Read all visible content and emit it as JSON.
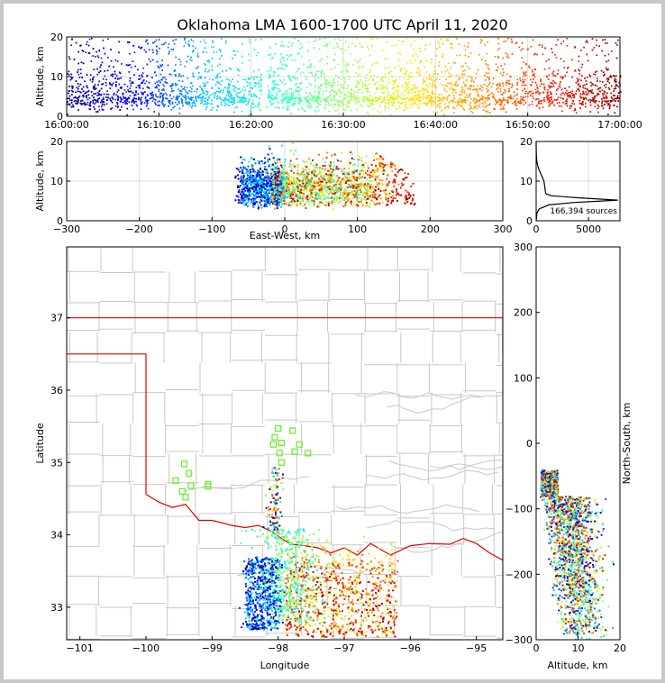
{
  "title": "Oklahoma LMA 1600-1700 UTC April 11, 2020",
  "colors": {
    "county_lines": "#c8c8c8",
    "state_lines": "#e00000",
    "stations": "#66ee22",
    "histogram_line": "#000000",
    "colormap": [
      "#00008b",
      "#0000ff",
      "#00c8ff",
      "#22ffd2",
      "#9aff63",
      "#ffe600",
      "#ff8c00",
      "#ff1a00",
      "#8b0000"
    ]
  },
  "chart_data": [
    {
      "type": "scatter",
      "name": "time_height",
      "xlabel": "",
      "ylabel": "Altitude, km",
      "x_ticks": [
        "16:00:00",
        "16:10:00",
        "16:20:00",
        "16:30:00",
        "16:40:00",
        "16:50:00",
        "17:00:00"
      ],
      "y_ticks": [
        0,
        10,
        20
      ],
      "xlim_minutes": [
        0,
        60
      ],
      "ylim": [
        0,
        20
      ],
      "data_gap_minutes": [
        21.1,
        21.6
      ],
      "color_by": "time",
      "grid": true
    },
    {
      "type": "scatter",
      "name": "east_west_height",
      "xlabel": "East-West, km",
      "ylabel": "Altitude, km",
      "x_ticks": [
        -300,
        -200,
        -100,
        0,
        100,
        200,
        300
      ],
      "y_ticks": [
        0,
        10,
        20
      ],
      "xlim": [
        -300,
        300
      ],
      "ylim": [
        0,
        20
      ],
      "color_by": "time",
      "grid": true
    },
    {
      "type": "line",
      "name": "altitude_histogram",
      "annotation": "166,394 sources",
      "x_ticks": [
        0,
        5000
      ],
      "y_ticks": [
        0,
        10,
        20
      ],
      "xlim": [
        0,
        8000
      ],
      "ylim": [
        0,
        20
      ],
      "x": [
        0,
        80,
        300,
        1200,
        3500,
        7800,
        4000,
        1500,
        1000,
        900,
        750,
        420,
        250,
        140,
        70,
        35,
        20,
        10,
        4,
        0
      ],
      "y": [
        0,
        2,
        3,
        4,
        4.6,
        5.2,
        5.8,
        6.3,
        6.7,
        7,
        10,
        12,
        13,
        14,
        15,
        16,
        17,
        18,
        19,
        20
      ]
    },
    {
      "type": "scatter",
      "name": "plan_view",
      "xlabel": "Longitude",
      "ylabel": "Latitude",
      "x_ticks": [
        "−101",
        "−100",
        "−99",
        "−98",
        "−97",
        "−96",
        "−95"
      ],
      "y_ticks": [
        "33",
        "34",
        "35",
        "36",
        "37"
      ],
      "xlim": [
        -101.2,
        -94.6
      ],
      "ylim": [
        32.55,
        37.98
      ],
      "color_by": "time",
      "grid": false,
      "stations": [
        [
          -98.0,
          35.47
        ],
        [
          -97.78,
          35.44
        ],
        [
          -98.05,
          35.35
        ],
        [
          -98.07,
          35.25
        ],
        [
          -97.95,
          35.27
        ],
        [
          -97.68,
          35.25
        ],
        [
          -97.75,
          35.15
        ],
        [
          -97.55,
          35.13
        ],
        [
          -97.98,
          35.13
        ],
        [
          -97.95,
          35.0
        ],
        [
          -99.42,
          34.98
        ],
        [
          -99.35,
          34.85
        ],
        [
          -99.55,
          34.75
        ],
        [
          -99.32,
          34.68
        ],
        [
          -99.45,
          34.6
        ],
        [
          -99.4,
          34.52
        ],
        [
          -99.06,
          34.7
        ],
        [
          -99.06,
          34.67
        ]
      ]
    },
    {
      "type": "scatter",
      "name": "north_south_height",
      "xlabel": "Altitude, km",
      "ylabel": "North-South, km",
      "x_ticks": [
        0,
        10,
        20
      ],
      "y_ticks": [
        -300,
        -200,
        -100,
        0,
        100,
        200,
        300
      ],
      "xlim": [
        0,
        20
      ],
      "ylim": [
        -300,
        300
      ],
      "color_by": "time",
      "grid": false
    }
  ]
}
